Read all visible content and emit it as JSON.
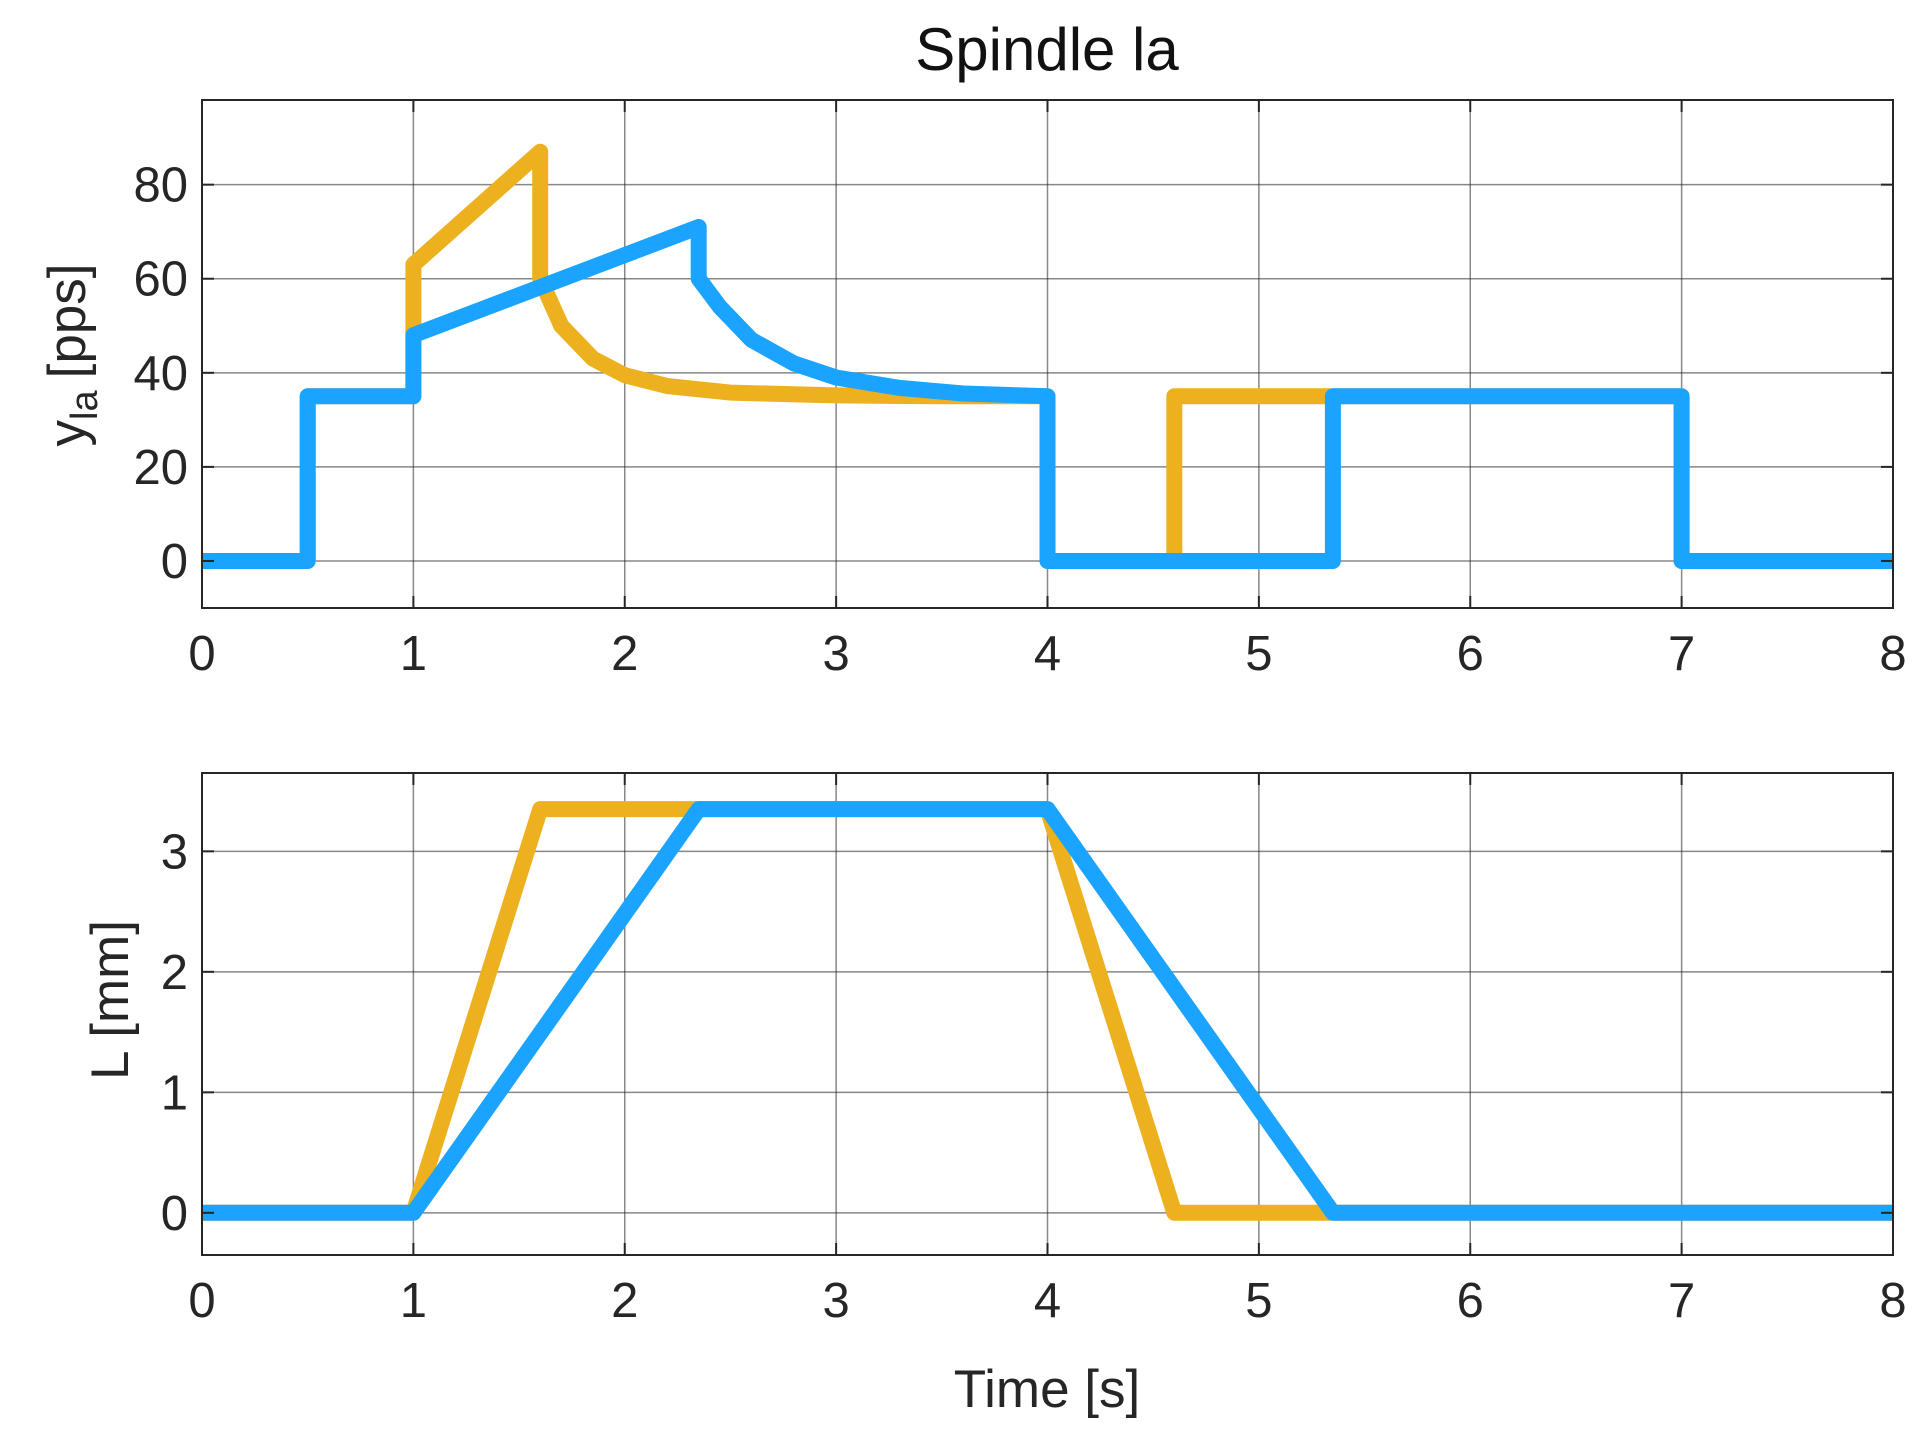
{
  "chart_data": [
    {
      "type": "line",
      "title": "Spindle la",
      "xlabel": "",
      "ylabel": {
        "main": "y",
        "subscript": "la",
        "unit": "[pps]"
      },
      "xlim": [
        0,
        8
      ],
      "ylim": [
        -10,
        98
      ],
      "xticks": [
        0,
        1,
        2,
        3,
        4,
        5,
        6,
        7,
        8
      ],
      "yticks": [
        0,
        20,
        40,
        60,
        80
      ],
      "grid": true,
      "series": [
        {
          "color": "#EDB120",
          "points": [
            [
              0,
              0
            ],
            [
              0.5,
              0
            ],
            [
              0.5,
              35
            ],
            [
              1,
              35
            ],
            [
              1,
              63
            ],
            [
              1.6,
              87
            ],
            [
              1.6,
              60
            ],
            [
              1.7,
              50
            ],
            [
              1.85,
              43
            ],
            [
              2,
              39.5
            ],
            [
              2.2,
              37.2
            ],
            [
              2.5,
              35.8
            ],
            [
              3,
              35.2
            ],
            [
              3.5,
              35
            ],
            [
              4,
              35
            ],
            [
              4,
              0
            ],
            [
              4.6,
              0
            ],
            [
              4.6,
              35
            ],
            [
              7,
              35
            ],
            [
              7,
              0
            ],
            [
              8,
              0
            ]
          ]
        },
        {
          "color": "#1AA3FF",
          "points": [
            [
              0,
              0
            ],
            [
              0.5,
              0
            ],
            [
              0.5,
              35
            ],
            [
              1,
              35
            ],
            [
              1,
              48
            ],
            [
              2.35,
              71
            ],
            [
              2.35,
              60
            ],
            [
              2.45,
              54
            ],
            [
              2.6,
              47
            ],
            [
              2.8,
              42
            ],
            [
              3,
              39
            ],
            [
              3.3,
              36.8
            ],
            [
              3.6,
              35.6
            ],
            [
              4,
              35
            ],
            [
              4,
              0
            ],
            [
              5.35,
              0
            ],
            [
              5.35,
              35
            ],
            [
              7,
              35
            ],
            [
              7,
              0
            ],
            [
              8,
              0
            ]
          ]
        }
      ]
    },
    {
      "type": "line",
      "title": "",
      "xlabel": "Time [s]",
      "ylabel": "L [mm]",
      "xlim": [
        0,
        8
      ],
      "ylim": [
        -0.35,
        3.65
      ],
      "xticks": [
        0,
        1,
        2,
        3,
        4,
        5,
        6,
        7,
        8
      ],
      "yticks": [
        0,
        1,
        2,
        3
      ],
      "grid": true,
      "series": [
        {
          "color": "#EDB120",
          "points": [
            [
              0,
              0
            ],
            [
              1,
              0
            ],
            [
              1.6,
              3.35
            ],
            [
              4,
              3.35
            ],
            [
              4.6,
              0
            ],
            [
              8,
              0
            ]
          ]
        },
        {
          "color": "#1AA3FF",
          "points": [
            [
              0,
              0
            ],
            [
              1,
              0
            ],
            [
              2.35,
              3.35
            ],
            [
              4,
              3.35
            ],
            [
              5.35,
              0
            ],
            [
              8,
              0
            ]
          ]
        }
      ]
    }
  ]
}
